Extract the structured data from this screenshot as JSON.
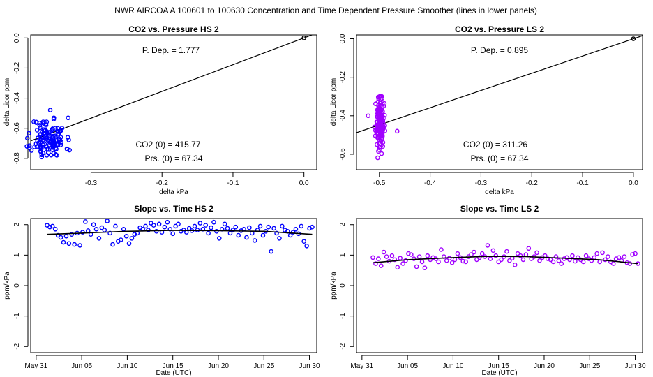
{
  "suptitle": "NWR   AIRCOA A   100601 to 100630   Concentration and Time Dependent Pressure Smoother (lines in lower panels)",
  "chart_data": [
    {
      "id": "co2_pressure_hs",
      "type": "scatter",
      "title": "CO2 vs. Pressure HS 2",
      "xlabel": "delta kPa",
      "ylabel": "delta Licor ppm",
      "xlim": [
        -0.385,
        0.018
      ],
      "ylim": [
        -0.875,
        0.02
      ],
      "xticks": [
        -0.3,
        -0.2,
        -0.1,
        0.0
      ],
      "xtick_labels": [
        "-0.3",
        "-0.2",
        "-0.1",
        "0.0"
      ],
      "yticks": [
        0.0,
        -0.2,
        -0.4,
        -0.6,
        -0.8
      ],
      "ytick_labels": [
        "0.0",
        "-0.2",
        "-0.4",
        "-0.6",
        "-0.8"
      ],
      "point_color": "#0000ff",
      "annotations": {
        "p_dep": "P. Dep. =  1.777",
        "co2_0": "CO2 (0) =  415.77",
        "prs_0": "Prs. (0) =  67.34"
      },
      "fit_line": {
        "x": [
          -0.385,
          0.018
        ],
        "y": [
          -0.684,
          0.032
        ]
      },
      "origin_point": {
        "x": 0.0,
        "y": 0.0
      },
      "cluster": {
        "x_center": -0.36,
        "x_spread": 0.012,
        "y_center": -0.67,
        "y_spread": 0.07,
        "y_min": -0.87,
        "y_max": -0.42,
        "n": 130,
        "seed": 11
      },
      "series": []
    },
    {
      "id": "co2_pressure_ls",
      "type": "scatter",
      "title": "CO2 vs. Pressure LS 2",
      "xlabel": "delta kPa",
      "ylabel": "delta Licor ppm",
      "xlim": [
        -0.545,
        0.018
      ],
      "ylim": [
        -0.68,
        0.02
      ],
      "xticks": [
        -0.5,
        -0.4,
        -0.3,
        -0.2,
        -0.1,
        0.0
      ],
      "xtick_labels": [
        "-0.5",
        "-0.4",
        "-0.3",
        "-0.2",
        "-0.1",
        "0.0"
      ],
      "yticks": [
        0.0,
        -0.2,
        -0.4,
        -0.6
      ],
      "ytick_labels": [
        "0.0",
        "-0.2",
        "-0.4",
        "-0.6"
      ],
      "point_color": "#a000ff",
      "annotations": {
        "p_dep": "P. Dep. =  0.895",
        "co2_0": "CO2 (0) =  311.26",
        "prs_0": "Prs. (0) =  67.34"
      },
      "fit_line": {
        "x": [
          -0.545,
          0.018
        ],
        "y": [
          -0.488,
          0.016
        ]
      },
      "origin_point": {
        "x": 0.0,
        "y": 0.0
      },
      "cluster": {
        "x_center": -0.499,
        "x_spread": 0.004,
        "y_center": -0.44,
        "y_spread": 0.07,
        "y_min": -0.66,
        "y_max": -0.3,
        "n": 150,
        "seed": 23
      },
      "extra_points": [
        {
          "x": -0.522,
          "y": -0.4
        },
        {
          "x": -0.465,
          "y": -0.48
        }
      ],
      "series": []
    },
    {
      "id": "slope_time_hs",
      "type": "scatter",
      "title": "Slope vs. Time HS 2",
      "xlabel": "Date (UTC)",
      "ylabel": "ppm/kPa",
      "xlim": [
        -0.6,
        30.8
      ],
      "ylim": [
        -2.2,
        2.2
      ],
      "xticks": [
        0,
        5,
        10,
        15,
        20,
        25,
        30
      ],
      "xtick_labels": [
        "May 31",
        "Jun 05",
        "Jun 10",
        "Jun 15",
        "Jun 20",
        "Jun 25",
        "Jun 30"
      ],
      "yticks": [
        2,
        1,
        0,
        -1,
        -2
      ],
      "ytick_labels": [
        "2",
        "1",
        "0",
        "-1",
        "-2"
      ],
      "point_color": "#0000ff",
      "smoother": {
        "x": [
          1.2,
          5,
          10,
          15,
          20,
          25,
          30.3
        ],
        "y": [
          1.68,
          1.72,
          1.78,
          1.81,
          1.8,
          1.78,
          1.68
        ]
      },
      "x": [
        1.2,
        1.5,
        1.8,
        2.1,
        2.4,
        2.7,
        3.0,
        3.3,
        3.6,
        3.9,
        4.2,
        4.5,
        4.8,
        5.1,
        5.4,
        5.7,
        6.0,
        6.3,
        6.6,
        6.9,
        7.2,
        7.5,
        7.8,
        8.1,
        8.4,
        8.7,
        9.0,
        9.3,
        9.6,
        9.9,
        10.2,
        10.5,
        10.8,
        11.1,
        11.4,
        11.7,
        12.0,
        12.3,
        12.6,
        12.9,
        13.2,
        13.5,
        13.8,
        14.1,
        14.4,
        14.7,
        15.0,
        15.3,
        15.6,
        15.9,
        16.2,
        16.5,
        16.8,
        17.1,
        17.4,
        17.7,
        18.0,
        18.3,
        18.6,
        18.9,
        19.2,
        19.5,
        19.8,
        20.1,
        20.4,
        20.7,
        21.0,
        21.3,
        21.6,
        21.9,
        22.2,
        22.5,
        22.8,
        23.1,
        23.4,
        23.7,
        24.0,
        24.3,
        24.6,
        24.9,
        25.2,
        25.5,
        25.8,
        26.1,
        26.4,
        26.7,
        27.0,
        27.3,
        27.6,
        27.9,
        28.2,
        28.5,
        28.8,
        29.1,
        29.4,
        29.7,
        30.0,
        30.3
      ],
      "y": [
        1.98,
        1.92,
        1.95,
        1.85,
        1.65,
        1.58,
        1.42,
        1.62,
        1.38,
        1.68,
        1.35,
        1.72,
        1.32,
        1.75,
        2.1,
        1.8,
        1.68,
        2.0,
        1.85,
        1.55,
        1.9,
        1.82,
        2.12,
        1.72,
        1.35,
        1.95,
        1.45,
        1.5,
        1.85,
        1.62,
        1.38,
        1.55,
        1.68,
        1.72,
        1.9,
        1.85,
        1.95,
        1.82,
        2.05,
        1.98,
        1.78,
        2.02,
        1.75,
        1.92,
        2.08,
        1.85,
        1.7,
        1.95,
        2.02,
        1.78,
        1.82,
        1.75,
        1.88,
        1.8,
        1.95,
        1.82,
        2.05,
        1.85,
        1.98,
        1.72,
        1.9,
        2.08,
        1.78,
        1.55,
        1.85,
        2.02,
        1.88,
        1.72,
        1.82,
        1.92,
        1.65,
        1.8,
        1.85,
        1.58,
        1.9,
        1.72,
        1.48,
        1.82,
        1.95,
        1.65,
        1.78,
        1.92,
        1.12,
        1.88,
        1.72,
        1.55,
        1.95,
        1.82,
        1.78,
        1.65,
        1.75,
        1.85,
        1.7,
        1.95,
        1.45,
        1.3,
        1.88,
        1.92
      ]
    },
    {
      "id": "slope_time_ls",
      "type": "scatter",
      "title": "Slope vs. Time LS 2",
      "xlabel": "Date (UTC)",
      "ylabel": "ppm/kPa",
      "xlim": [
        -0.6,
        30.8
      ],
      "ylim": [
        -2.2,
        2.2
      ],
      "xticks": [
        0,
        5,
        10,
        15,
        20,
        25,
        30
      ],
      "xtick_labels": [
        "May 31",
        "Jun 05",
        "Jun 10",
        "Jun 15",
        "Jun 20",
        "Jun 25",
        "Jun 30"
      ],
      "yticks": [
        2,
        1,
        0,
        -1,
        -2
      ],
      "ytick_labels": [
        "2",
        "1",
        "0",
        "-1",
        "-2"
      ],
      "point_color": "#a000ff",
      "smoother": {
        "x": [
          1.2,
          5,
          10,
          14,
          18,
          22,
          26,
          30.3
        ],
        "y": [
          0.75,
          0.85,
          0.92,
          0.96,
          0.95,
          0.9,
          0.85,
          0.72
        ]
      },
      "x": [
        1.2,
        1.5,
        1.8,
        2.1,
        2.4,
        2.7,
        3.0,
        3.3,
        3.6,
        3.9,
        4.2,
        4.5,
        4.8,
        5.1,
        5.4,
        5.7,
        6.0,
        6.3,
        6.6,
        6.9,
        7.2,
        7.5,
        7.8,
        8.1,
        8.4,
        8.7,
        9.0,
        9.3,
        9.6,
        9.9,
        10.2,
        10.5,
        10.8,
        11.1,
        11.4,
        11.7,
        12.0,
        12.3,
        12.6,
        12.9,
        13.2,
        13.5,
        13.8,
        14.1,
        14.4,
        14.7,
        15.0,
        15.3,
        15.6,
        15.9,
        16.2,
        16.5,
        16.8,
        17.1,
        17.4,
        17.7,
        18.0,
        18.3,
        18.6,
        18.9,
        19.2,
        19.5,
        19.8,
        20.1,
        20.4,
        20.7,
        21.0,
        21.3,
        21.6,
        21.9,
        22.2,
        22.5,
        22.8,
        23.1,
        23.4,
        23.7,
        24.0,
        24.3,
        24.6,
        24.9,
        25.2,
        25.5,
        25.8,
        26.1,
        26.4,
        26.7,
        27.0,
        27.3,
        27.6,
        27.9,
        28.2,
        28.5,
        28.8,
        29.1,
        29.4,
        29.7,
        30.0,
        30.3
      ],
      "y": [
        0.92,
        0.72,
        0.88,
        0.65,
        1.1,
        0.95,
        0.8,
        0.98,
        0.85,
        0.6,
        0.9,
        0.72,
        0.82,
        1.05,
        1.02,
        0.88,
        0.62,
        0.95,
        0.78,
        0.58,
        0.98,
        0.85,
        0.92,
        0.88,
        0.78,
        1.18,
        0.95,
        0.82,
        0.9,
        0.75,
        0.85,
        1.05,
        0.92,
        0.8,
        0.78,
        0.95,
        1.02,
        1.1,
        0.85,
        0.92,
        1.05,
        0.95,
        1.32,
        0.88,
        1.15,
        0.98,
        0.78,
        0.85,
        0.95,
        1.12,
        0.82,
        0.9,
        0.68,
        1.05,
        0.98,
        0.85,
        1.02,
        1.22,
        0.88,
        0.95,
        1.08,
        0.82,
        0.92,
        0.98,
        0.88,
        0.85,
        0.78,
        0.95,
        0.82,
        0.72,
        0.88,
        0.92,
        0.85,
        0.98,
        0.8,
        0.92,
        0.85,
        0.78,
        0.98,
        0.88,
        0.82,
        0.92,
        1.05,
        0.78,
        1.08,
        0.85,
        0.95,
        0.78,
        0.72,
        0.88,
        0.92,
        0.82,
        0.95,
        0.75,
        0.72,
        1.02,
        1.05,
        0.72
      ]
    }
  ]
}
